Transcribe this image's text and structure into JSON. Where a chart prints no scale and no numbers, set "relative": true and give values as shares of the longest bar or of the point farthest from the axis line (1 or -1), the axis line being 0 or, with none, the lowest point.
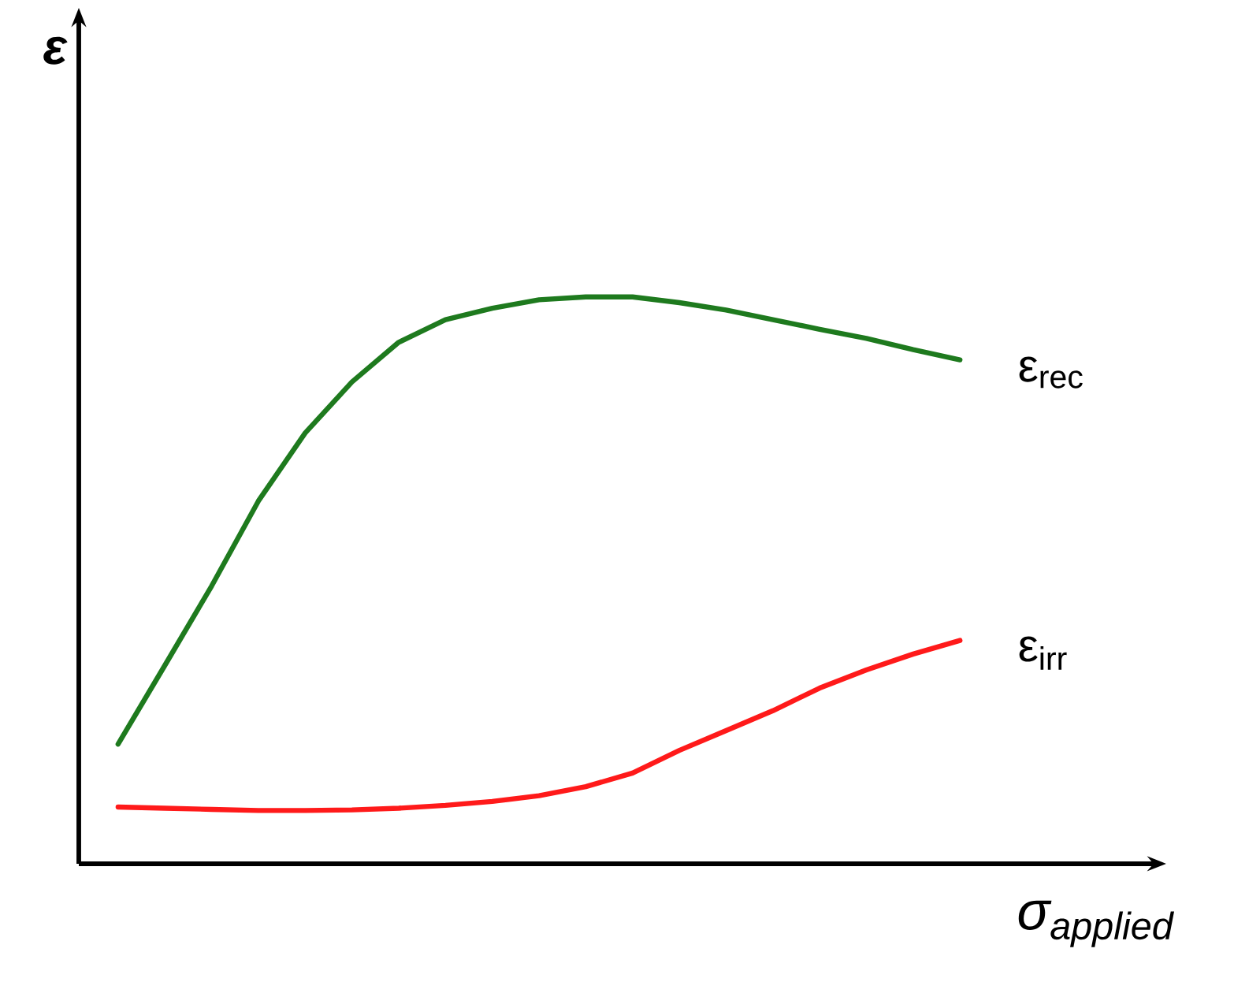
{
  "chart_data": {
    "type": "line",
    "relative": true,
    "xlabel": "σ$_{applied}$",
    "ylabel": "ε",
    "tick_labels": false,
    "legend": false,
    "marker": "none",
    "line_style": "solid",
    "categories": [
      null,
      null,
      null,
      null,
      null,
      null,
      null,
      null,
      null,
      null,
      null,
      null,
      null,
      null,
      null,
      null,
      null,
      null,
      null
    ],
    "series": [
      {
        "name": "ε$_{rec}$",
        "color": "#1e7a1e",
        "values": [
          0.211,
          0.35,
          0.49,
          0.64,
          0.76,
          0.85,
          0.92,
          0.96,
          0.98,
          0.995,
          1.0,
          1.0,
          0.99,
          0.977,
          0.96,
          0.943,
          0.927,
          0.907,
          0.889
        ]
      },
      {
        "name": "ε$_{irr}$",
        "color": "#ff1a1a",
        "values": [
          0.1,
          0.098,
          0.096,
          0.094,
          0.094,
          0.095,
          0.098,
          0.103,
          0.11,
          0.12,
          0.136,
          0.16,
          0.2,
          0.235,
          0.27,
          0.31,
          0.342,
          0.37,
          0.394
        ]
      }
    ]
  }
}
